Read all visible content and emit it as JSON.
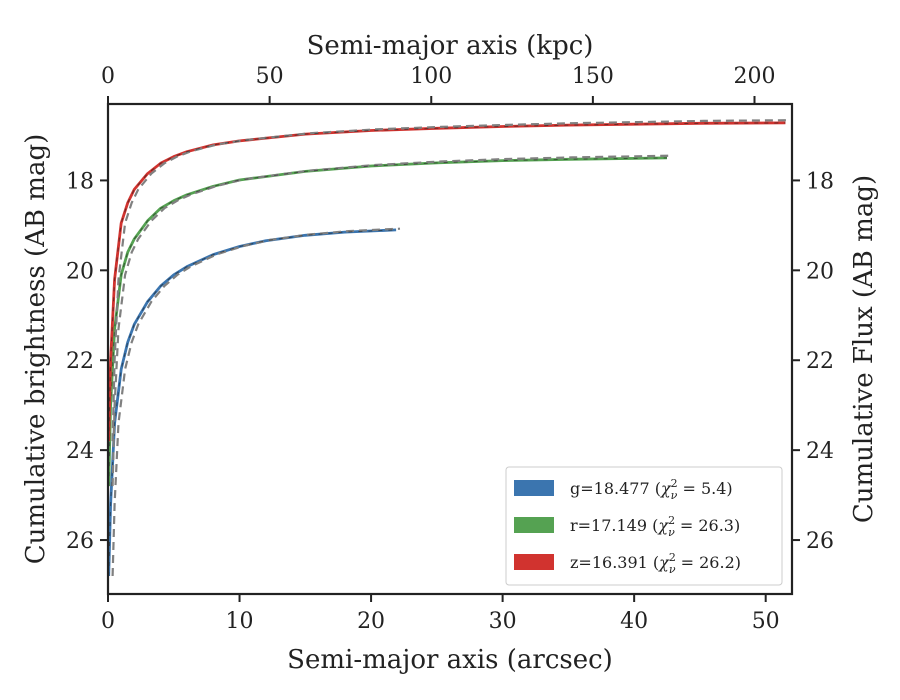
{
  "chart_data": {
    "type": "line",
    "title": "",
    "xlabel": "Semi-major axis (arcsec)",
    "xlabel_top": "Semi-major axis (kpc)",
    "ylabel": "Cumulative brightness (AB mag)",
    "ylabel_right": "Cumulative Flux (AB mag)",
    "xlim": [
      0,
      52
    ],
    "xlim_top": [
      0,
      211.6
    ],
    "ylim": [
      16.3,
      27.2
    ],
    "y_inverted": true,
    "xticks": [
      "0",
      "10",
      "20",
      "30",
      "40",
      "50"
    ],
    "xticks_top": [
      "0",
      "50",
      "100",
      "150",
      "200"
    ],
    "yticks": [
      "18",
      "20",
      "22",
      "24",
      "26"
    ],
    "grid": false,
    "legend_position": "lower right",
    "series": [
      {
        "name": "g=18.477 (χ²_ν = 5.4)",
        "band": "g",
        "mag_label": "g=18.477",
        "chi_value": "5.4",
        "color": "#3b75af",
        "x": [
          0.05,
          0.2,
          0.5,
          1.0,
          1.5,
          2.0,
          3.0,
          4.0,
          5.0,
          6.0,
          8.0,
          10.0,
          12.0,
          15.0,
          18.0,
          21.9
        ],
        "y": [
          26.8,
          25.2,
          23.4,
          22.2,
          21.6,
          21.2,
          20.7,
          20.35,
          20.1,
          19.92,
          19.65,
          19.47,
          19.34,
          19.22,
          19.15,
          19.1
        ]
      },
      {
        "name": "r=17.149 (χ²_ν = 26.3)",
        "band": "r",
        "mag_label": "r=17.149",
        "chi_value": "26.3",
        "color": "#55a252",
        "x": [
          0.05,
          0.2,
          0.5,
          1.0,
          1.5,
          2.0,
          3.0,
          4.0,
          5.0,
          6.0,
          8.0,
          10.0,
          15.0,
          20.0,
          25.0,
          30.0,
          35.0,
          42.5
        ],
        "y": [
          24.8,
          23.0,
          21.3,
          20.1,
          19.6,
          19.3,
          18.9,
          18.62,
          18.45,
          18.32,
          18.13,
          17.99,
          17.8,
          17.68,
          17.61,
          17.56,
          17.53,
          17.5
        ]
      },
      {
        "name": "z=16.391 (χ²_ν = 26.2)",
        "band": "z",
        "mag_label": "z=16.391",
        "chi_value": "26.2",
        "color": "#d1332f",
        "x": [
          0.05,
          0.2,
          0.5,
          1.0,
          1.5,
          2.0,
          3.0,
          4.0,
          5.0,
          6.0,
          8.0,
          10.0,
          15.0,
          20.0,
          25.0,
          30.0,
          35.0,
          40.0,
          45.0,
          51.5
        ],
        "y": [
          23.8,
          22.0,
          20.2,
          18.95,
          18.5,
          18.2,
          17.85,
          17.62,
          17.47,
          17.36,
          17.21,
          17.12,
          16.97,
          16.89,
          16.84,
          16.8,
          16.77,
          16.75,
          16.73,
          16.72
        ]
      }
    ],
    "model_color": "#808080"
  }
}
